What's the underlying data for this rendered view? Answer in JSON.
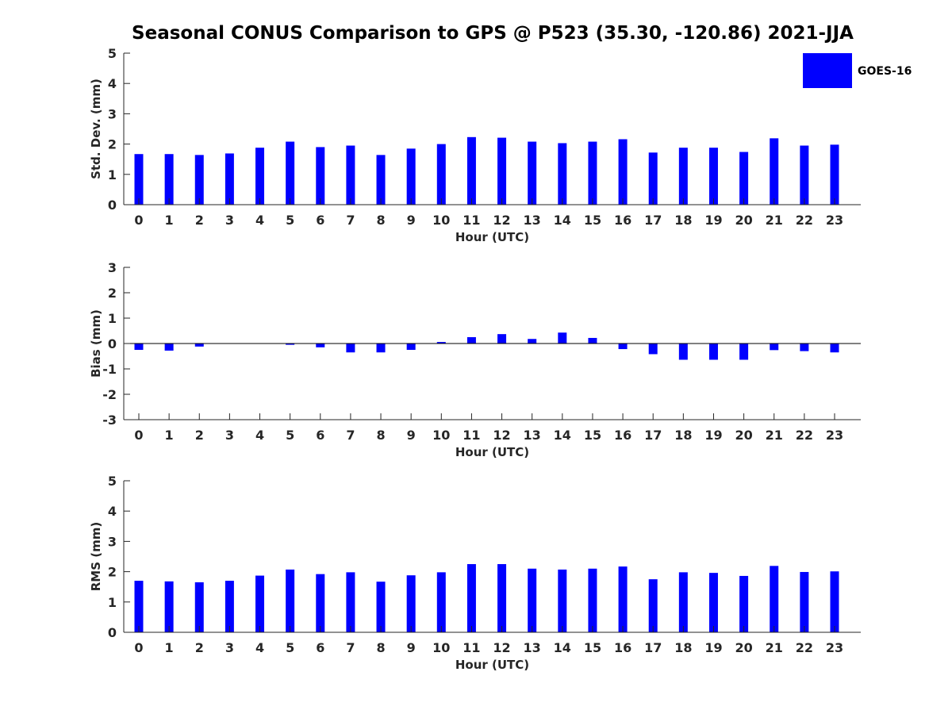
{
  "title": "Seasonal CONUS Comparison to GPS @ P523 (35.30, -120.86) 2021-JJA",
  "legend": {
    "label": "GOES-16",
    "color": "#0000ff"
  },
  "chart_data": [
    {
      "type": "bar",
      "xlabel": "Hour (UTC)",
      "ylabel": "Std. Dev. (mm)",
      "ylim": [
        0,
        5
      ],
      "yticks": [
        0,
        1,
        2,
        3,
        4,
        5
      ],
      "categories": [
        0,
        1,
        2,
        3,
        4,
        5,
        6,
        7,
        8,
        9,
        10,
        11,
        12,
        13,
        14,
        15,
        16,
        17,
        18,
        19,
        20,
        21,
        22,
        23
      ],
      "series": [
        {
          "name": "GOES-16",
          "color": "#0000ff",
          "values": [
            1.67,
            1.67,
            1.64,
            1.69,
            1.88,
            2.08,
            1.9,
            1.95,
            1.64,
            1.85,
            2.0,
            2.23,
            2.21,
            2.08,
            2.03,
            2.08,
            2.16,
            1.72,
            1.88,
            1.88,
            1.74,
            2.19,
            1.95,
            1.98
          ]
        }
      ],
      "legend": "top-right",
      "grid": false
    },
    {
      "type": "bar",
      "xlabel": "Hour (UTC)",
      "ylabel": "Bias (mm)",
      "ylim": [
        -3,
        3
      ],
      "yticks": [
        -3,
        -2,
        -1,
        0,
        1,
        2,
        3
      ],
      "categories": [
        0,
        1,
        2,
        3,
        4,
        5,
        6,
        7,
        8,
        9,
        10,
        11,
        12,
        13,
        14,
        15,
        16,
        17,
        18,
        19,
        20,
        21,
        22,
        23
      ],
      "series": [
        {
          "color": "#0000ff",
          "values": [
            -0.25,
            -0.28,
            -0.12,
            0,
            0,
            -0.05,
            -0.15,
            -0.35,
            -0.35,
            -0.25,
            0.06,
            0.25,
            0.37,
            0.18,
            0.43,
            0.22,
            -0.22,
            -0.42,
            -0.64,
            -0.64,
            -0.64,
            -0.26,
            -0.3,
            -0.35
          ]
        }
      ],
      "grid": false
    },
    {
      "type": "bar",
      "xlabel": "Hour (UTC)",
      "ylabel": "RMS (mm)",
      "ylim": [
        0,
        5
      ],
      "yticks": [
        0,
        1,
        2,
        3,
        4,
        5
      ],
      "categories": [
        0,
        1,
        2,
        3,
        4,
        5,
        6,
        7,
        8,
        9,
        10,
        11,
        12,
        13,
        14,
        15,
        16,
        17,
        18,
        19,
        20,
        21,
        22,
        23
      ],
      "series": [
        {
          "color": "#0000ff",
          "values": [
            1.7,
            1.68,
            1.65,
            1.7,
            1.87,
            2.07,
            1.92,
            1.98,
            1.67,
            1.88,
            1.98,
            2.25,
            2.25,
            2.1,
            2.07,
            2.1,
            2.17,
            1.75,
            1.98,
            1.96,
            1.86,
            2.19,
            1.99,
            2.01
          ]
        }
      ],
      "grid": false
    }
  ]
}
